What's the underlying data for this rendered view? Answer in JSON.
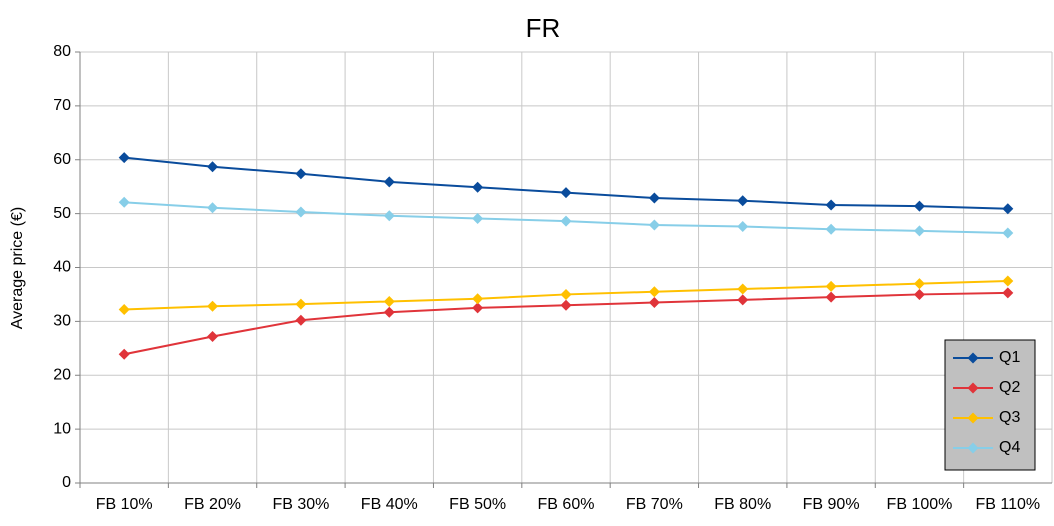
{
  "chart_data": {
    "type": "line",
    "title": "FR",
    "y_label": "Average price (€)",
    "categories": [
      "FB 10%",
      "FB 20%",
      "FB 30%",
      "FB 40%",
      "FB 50%",
      "FB 60%",
      "FB 70%",
      "FB 80%",
      "FB 90%",
      "FB 100%",
      "FB 110%"
    ],
    "series": [
      {
        "name": "Q1",
        "color": "#0a4c9c",
        "values": [
          60.4,
          58.7,
          57.4,
          55.9,
          54.9,
          53.9,
          52.9,
          52.4,
          51.6,
          51.4,
          50.9
        ]
      },
      {
        "name": "Q2",
        "color": "#e0343a",
        "values": [
          23.9,
          27.2,
          30.2,
          31.7,
          32.5,
          33.0,
          33.5,
          34.0,
          34.5,
          35.0,
          35.3
        ]
      },
      {
        "name": "Q3",
        "color": "#ffc000",
        "values": [
          32.2,
          32.8,
          33.2,
          33.7,
          34.2,
          35.0,
          35.5,
          36.0,
          36.5,
          37.0,
          37.5
        ]
      },
      {
        "name": "Q4",
        "color": "#87cee8",
        "values": [
          52.1,
          51.1,
          50.3,
          49.6,
          49.1,
          48.6,
          47.9,
          47.6,
          47.1,
          46.8,
          46.4
        ]
      }
    ],
    "ylim": [
      0,
      80
    ],
    "yticks": [
      0,
      10,
      20,
      30,
      40,
      50,
      60,
      70,
      80
    ],
    "grid": true,
    "legend": "lower right"
  }
}
